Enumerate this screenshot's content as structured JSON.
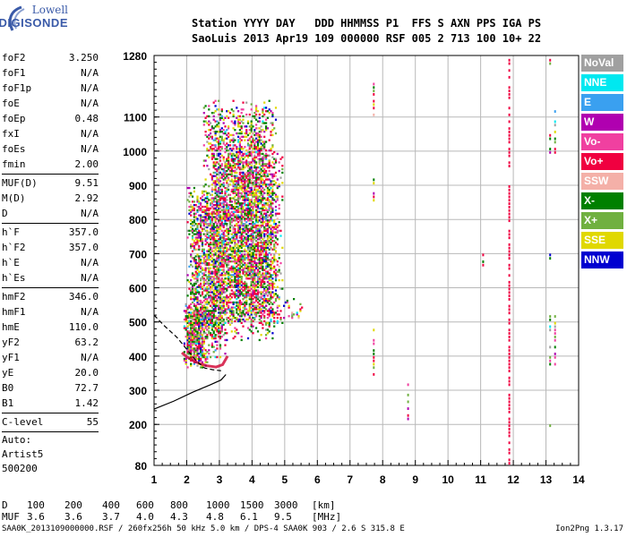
{
  "logo": {
    "line1": "Lowell",
    "line2": "DIGISONDE"
  },
  "header": {
    "labels": [
      "Station",
      "YYYY",
      "DAY",
      "DDD",
      "HHMMSS",
      "P1",
      "FFS",
      "S",
      "AXN",
      "PPS",
      "IGA",
      "PS"
    ],
    "values": [
      "SaoLuis",
      "2013",
      "Apr19",
      "109",
      "000000",
      "RSF",
      "005",
      "2",
      "713",
      "100",
      "10+",
      "22"
    ],
    "line1": "Station YYYY DAY   DDD HHMMSS P1  FFS S AXN PPS IGA PS",
    "line2": "SaoLuis 2013 Apr19 109 000000 RSF 005 2 713 100 10+ 22"
  },
  "params": {
    "group1": [
      {
        "name": "foF2",
        "value": "3.250"
      },
      {
        "name": "foF1",
        "value": "N/A"
      },
      {
        "name": "foF1p",
        "value": "N/A"
      },
      {
        "name": "foE",
        "value": "N/A"
      },
      {
        "name": "foEp",
        "value": "0.48"
      },
      {
        "name": "fxI",
        "value": "N/A"
      },
      {
        "name": "foEs",
        "value": "N/A"
      },
      {
        "name": "fmin",
        "value": "2.00"
      }
    ],
    "group2": [
      {
        "name": "MUF(D)",
        "value": "9.51"
      },
      {
        "name": "M(D)",
        "value": "2.92"
      },
      {
        "name": "D",
        "value": "N/A"
      }
    ],
    "group3": [
      {
        "name": "h`F",
        "value": "357.0"
      },
      {
        "name": "h`F2",
        "value": "357.0"
      },
      {
        "name": "h`E",
        "value": "N/A"
      },
      {
        "name": "h`Es",
        "value": "N/A"
      }
    ],
    "group4": [
      {
        "name": "hmF2",
        "value": "346.0"
      },
      {
        "name": "hmF1",
        "value": "N/A"
      },
      {
        "name": "hmE",
        "value": "110.0"
      },
      {
        "name": "yF2",
        "value": "63.2"
      },
      {
        "name": "yF1",
        "value": "N/A"
      },
      {
        "name": "yE",
        "value": "20.0"
      },
      {
        "name": "B0",
        "value": "72.7"
      },
      {
        "name": "B1",
        "value": "1.42"
      }
    ],
    "group5": [
      {
        "name": "C-level",
        "value": "55"
      }
    ],
    "auto": [
      "Auto:",
      "Artist5",
      "500200"
    ]
  },
  "legend": [
    {
      "label": "NoVal",
      "color": "#a0a0a0"
    },
    {
      "label": "NNE",
      "color": "#00e8f0"
    },
    {
      "label": "E",
      "color": "#3aa0f0"
    },
    {
      "label": "W",
      "color": "#b000b0"
    },
    {
      "label": "Vo-",
      "color": "#f040a0"
    },
    {
      "label": "Vo+",
      "color": "#f00040"
    },
    {
      "label": "SSW",
      "color": "#f4b0a8"
    },
    {
      "label": "X-",
      "color": "#008000"
    },
    {
      "label": "X+",
      "color": "#70b040"
    },
    {
      "label": "SSE",
      "color": "#e0d800"
    },
    {
      "label": "NNW",
      "color": "#0000d0"
    }
  ],
  "chart_data": {
    "type": "scatter",
    "xlim": [
      1,
      14
    ],
    "ylim": [
      80,
      1280
    ],
    "xticks": [
      "1",
      "2",
      "3",
      "4",
      "5",
      "6",
      "7",
      "8",
      "9",
      "10",
      "11",
      "12",
      "13",
      "14"
    ],
    "yticks": [
      {
        "value": 200,
        "label": "200"
      },
      {
        "value": 300,
        "label": "300"
      },
      {
        "value": 400,
        "label": "400"
      },
      {
        "value": 500,
        "label": "500"
      },
      {
        "value": 600,
        "label": "600"
      },
      {
        "value": 700,
        "label": "700"
      },
      {
        "value": 800,
        "label": "800"
      },
      {
        "value": 900,
        "label": "900"
      },
      {
        "value": 1000,
        "label": "1000"
      },
      {
        "value": 1100,
        "label": "1100"
      },
      {
        "value": 1280,
        "label": "1280"
      },
      {
        "value": 80,
        "label": "80"
      }
    ],
    "grid": true,
    "legend_position": "right",
    "profile_solid": [
      [
        1.0,
        245
      ],
      [
        1.6,
        268
      ],
      [
        2.2,
        295
      ],
      [
        2.7,
        315
      ],
      [
        3.05,
        330
      ],
      [
        3.2,
        346
      ]
    ],
    "profile_dashed": [
      [
        1.0,
        520
      ],
      [
        1.3,
        490
      ],
      [
        1.7,
        455
      ],
      [
        2.0,
        420
      ],
      [
        2.3,
        385
      ],
      [
        2.55,
        365
      ],
      [
        2.8,
        360
      ],
      [
        3.05,
        357
      ]
    ],
    "trace_f2": [
      [
        1.85,
        410
      ],
      [
        2.0,
        398
      ],
      [
        2.3,
        382
      ],
      [
        2.6,
        372
      ],
      [
        2.9,
        368
      ],
      [
        3.1,
        375
      ],
      [
        3.25,
        400
      ]
    ],
    "echo_regions": [
      {
        "x": [
          1.9,
          2.6
        ],
        "y": [
          370,
          560
        ],
        "density": 0.8
      },
      {
        "x": [
          2.0,
          3.2
        ],
        "y": [
          400,
          900
        ],
        "density": 0.55
      },
      {
        "x": [
          2.5,
          4.7
        ],
        "y": [
          450,
          1150
        ],
        "density": 0.5
      },
      {
        "x": [
          3.2,
          4.9
        ],
        "y": [
          500,
          1000
        ],
        "density": 0.4
      },
      {
        "x": [
          4.9,
          5.5
        ],
        "y": [
          500,
          580
        ],
        "density": 0.15
      }
    ],
    "vertical_traces": [
      {
        "x": 7.7,
        "ranges": [
          [
            320,
            480
          ],
          [
            860,
            920
          ],
          [
            1110,
            1200
          ]
        ]
      },
      {
        "x": 8.75,
        "ranges": [
          [
            220,
            320
          ]
        ]
      },
      {
        "x": 11.05,
        "ranges": [
          [
            670,
            710
          ]
        ]
      },
      {
        "x": 11.85,
        "ranges": [
          [
            90,
            1270
          ]
        ]
      },
      {
        "x": 13.1,
        "ranges": [
          [
            200,
            220
          ],
          [
            380,
            520
          ],
          [
            680,
            700
          ],
          [
            1000,
            1060
          ],
          [
            1260,
            1270
          ]
        ]
      },
      {
        "x": 13.25,
        "ranges": [
          [
            380,
            520
          ],
          [
            1000,
            1120
          ]
        ]
      }
    ]
  },
  "footer": {
    "row1_label": "D",
    "row1": [
      "100",
      "200",
      "400",
      "600",
      "800",
      "1000",
      "1500",
      "3000",
      "[km]"
    ],
    "row2_label": "MUF",
    "row2": [
      "3.6",
      "3.6",
      "3.7",
      "4.0",
      "4.3",
      "4.8",
      "6.1",
      "9.5",
      "[MHz]"
    ],
    "file_line": "SAA0K_2013109000000.RSF / 260fx256h 50 kHz 5.0 km / DPS-4 SAA0K 903 / 2.6 S 315.8 E",
    "version": "Ion2Png 1.3.17"
  }
}
